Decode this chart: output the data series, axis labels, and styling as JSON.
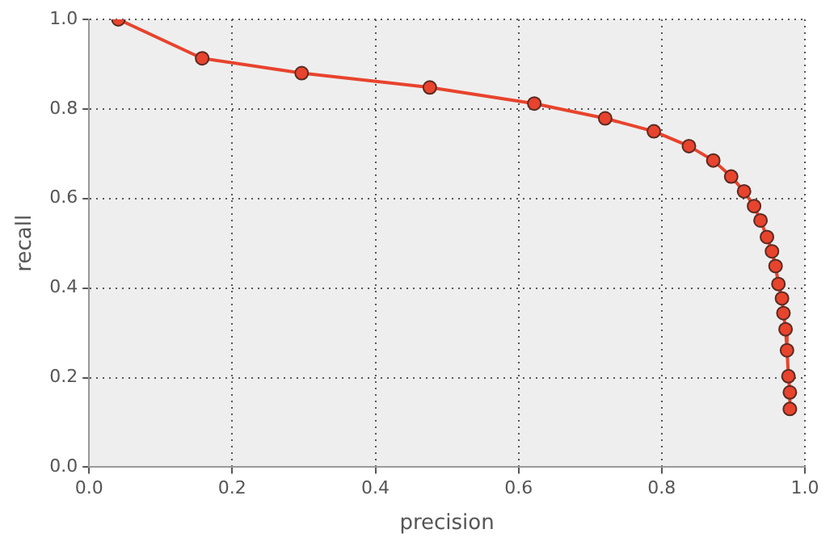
{
  "chart_data": {
    "type": "line",
    "xlabel": "precision",
    "ylabel": "recall",
    "x": [
      0.041,
      0.158,
      0.297,
      0.476,
      0.622,
      0.721,
      0.789,
      0.838,
      0.872,
      0.897,
      0.915,
      0.929,
      0.938,
      0.947,
      0.954,
      0.959,
      0.963,
      0.968,
      0.97,
      0.973,
      0.975,
      0.977,
      0.979,
      0.979
    ],
    "series": [
      {
        "color": "#e8432d",
        "values": [
          1.0,
          0.913,
          0.88,
          0.848,
          0.812,
          0.779,
          0.75,
          0.717,
          0.685,
          0.649,
          0.616,
          0.583,
          0.551,
          0.514,
          0.482,
          0.449,
          0.409,
          0.377,
          0.344,
          0.308,
          0.261,
          0.203,
          0.167,
          0.13
        ]
      }
    ],
    "xlim": [
      0,
      1
    ],
    "ylim": [
      0,
      1
    ],
    "xticks": [
      {
        "value": 0,
        "label": "0.0"
      },
      {
        "value": 0.2,
        "label": "0.2"
      },
      {
        "value": 0.4,
        "label": "0.4"
      },
      {
        "value": 0.6,
        "label": "0.6"
      },
      {
        "value": 0.8,
        "label": "0.8"
      },
      {
        "value": 1,
        "label": "1.0"
      }
    ],
    "yticks": [
      {
        "value": 0,
        "label": "0.0"
      },
      {
        "value": 0.2,
        "label": "0.2"
      },
      {
        "value": 0.4,
        "label": "0.4"
      },
      {
        "value": 0.6,
        "label": "0.6"
      },
      {
        "value": 0.8,
        "label": "0.8"
      },
      {
        "value": 1,
        "label": "1.0"
      }
    ],
    "grid": true,
    "legend": false,
    "marker": "circle",
    "line_style": "solid"
  }
}
